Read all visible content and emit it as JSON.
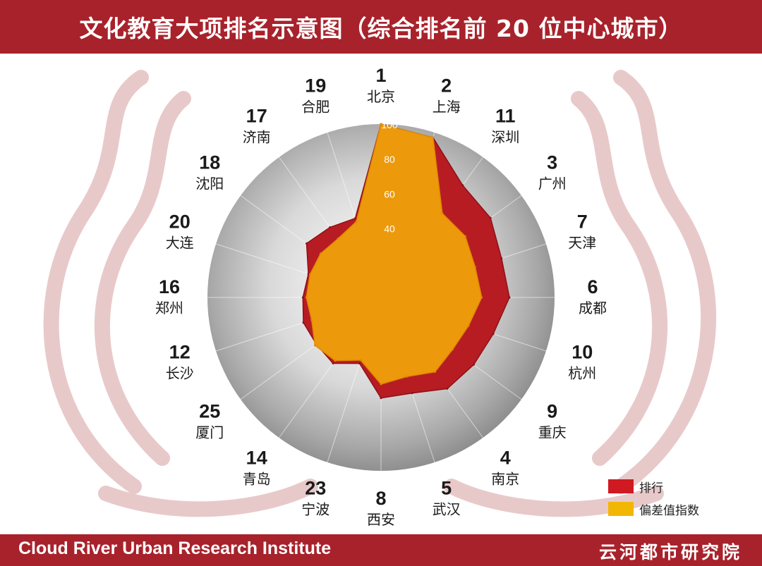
{
  "title": "文化教育大项排名示意图（综合排名前 20 位中心城市）",
  "footer": {
    "left": "Cloud River Urban Research Institute",
    "right": "云河都市研究院"
  },
  "colors": {
    "brand": "#a8222b",
    "rank_series": "#b71c23",
    "index_series": "#f0a30a"
  },
  "chart_data": {
    "type": "radar",
    "title": "文化教育大项排名示意图（综合排名前 20 位中心城市）",
    "radial_axis": {
      "ticks": [
        40,
        60,
        80,
        100
      ],
      "range": [
        0,
        100
      ]
    },
    "categories": [
      {
        "city": "北京",
        "rank": "1"
      },
      {
        "city": "上海",
        "rank": "2"
      },
      {
        "city": "深圳",
        "rank": "11"
      },
      {
        "city": "广州",
        "rank": "3"
      },
      {
        "city": "天津",
        "rank": "7"
      },
      {
        "city": "成都",
        "rank": "6"
      },
      {
        "city": "杭州",
        "rank": "10"
      },
      {
        "city": "重庆",
        "rank": "9"
      },
      {
        "city": "南京",
        "rank": "4"
      },
      {
        "city": "武汉",
        "rank": "5"
      },
      {
        "city": "西安",
        "rank": "8"
      },
      {
        "city": "宁波",
        "rank": "23"
      },
      {
        "city": "青岛",
        "rank": "14"
      },
      {
        "city": "厦门",
        "rank": "25"
      },
      {
        "city": "长沙",
        "rank": "12"
      },
      {
        "city": "郑州",
        "rank": "16"
      },
      {
        "city": "大连",
        "rank": "20"
      },
      {
        "city": "沈阳",
        "rank": "18"
      },
      {
        "city": "济南",
        "rank": "17"
      },
      {
        "city": "合肥",
        "rank": "19"
      }
    ],
    "series": [
      {
        "name": "排行",
        "values": [
          100,
          97,
          80,
          78,
          73,
          74,
          68,
          66,
          65,
          58,
          58,
          40,
          47,
          46,
          47,
          45,
          44,
          53,
          50,
          48
        ]
      },
      {
        "name": "偏差值指数",
        "values": [
          100,
          97,
          60,
          60,
          57,
          58,
          53,
          51,
          53,
          48,
          50,
          38,
          45,
          47,
          42,
          43,
          43,
          43,
          42,
          46
        ]
      }
    ],
    "legend": {
      "position": "bottom-right"
    }
  }
}
